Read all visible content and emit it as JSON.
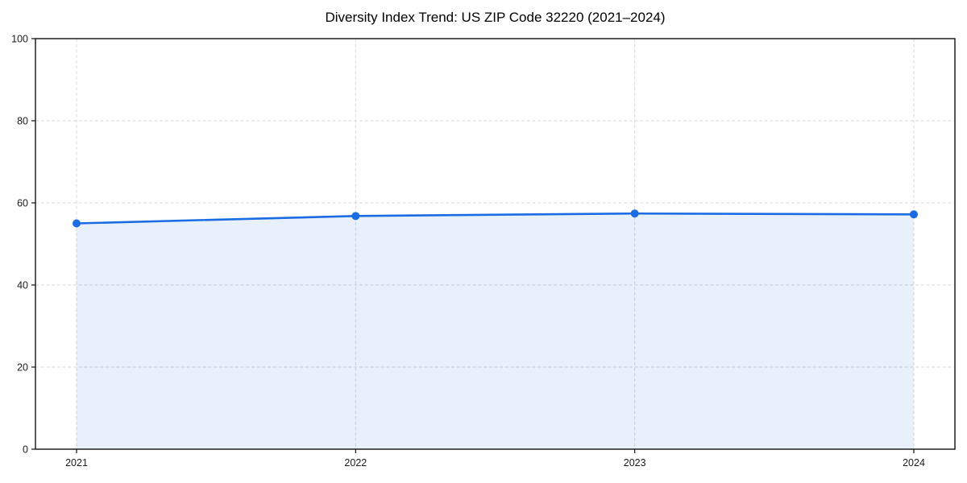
{
  "chart_data": {
    "type": "area",
    "title": "Diversity Index Trend: US ZIP Code 32220 (2021–2024)",
    "x": [
      "2021",
      "2022",
      "2023",
      "2024"
    ],
    "series": [
      {
        "name": "Diversity Index",
        "values": [
          55.0,
          56.8,
          57.4,
          57.2
        ]
      }
    ],
    "xlabel": "",
    "ylabel": "",
    "ylim": [
      0,
      100
    ],
    "yticks": [
      0,
      20,
      40,
      60,
      80,
      100
    ],
    "grid": true,
    "grid_style": "dashed",
    "legend_position": "none",
    "marker": "circle",
    "colors": {
      "line": "#1b6ce3",
      "marker": "#1b6ce3",
      "fill": "#1b6ce3",
      "fill_opacity": 0.1,
      "grid": "#d9d9d9",
      "spine": "#111111",
      "tick": "#111111",
      "tick_label": "#1a1a1a",
      "title": "#000000",
      "background": "#ffffff"
    }
  }
}
